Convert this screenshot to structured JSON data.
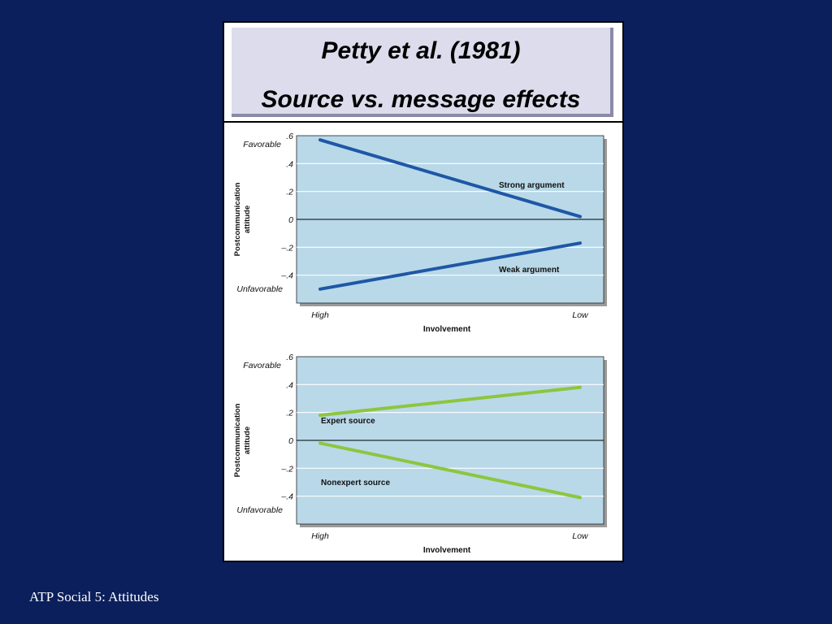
{
  "slide": {
    "title_line_1": "Petty et al. (1981)",
    "title_line_2": "Source vs. message effects",
    "footer": "ATP Social 5: Attitudes"
  },
  "colors": {
    "background": "#0b1f5c",
    "plot_fill": "#b9d9e9",
    "strong_weak_lines": "#1f57a6",
    "expert_lines": "#8cc63f"
  },
  "chart_data": [
    {
      "type": "line",
      "xlabel": "Involvement",
      "ylabel": [
        "Postcommunication",
        "attitude"
      ],
      "categories": [
        "High",
        "Low"
      ],
      "y_ticks": [
        ".6",
        ".4",
        ".2",
        "0",
        "–.2",
        "–.4"
      ],
      "y_tick_values": [
        0.6,
        0.4,
        0.2,
        0,
        -0.2,
        -0.4
      ],
      "ylim": [
        -0.6,
        0.6
      ],
      "y_end_labels": {
        "top": "Favorable",
        "bottom": "Unfavorable"
      },
      "grid": true,
      "series": [
        {
          "name": "Strong argument",
          "values": [
            0.57,
            0.02
          ],
          "color": "#1f57a6"
        },
        {
          "name": "Weak argument",
          "values": [
            -0.5,
            -0.17
          ],
          "color": "#1f57a6"
        }
      ]
    },
    {
      "type": "line",
      "xlabel": "Involvement",
      "ylabel": [
        "Postcommunication",
        "attitude"
      ],
      "categories": [
        "High",
        "Low"
      ],
      "y_ticks": [
        ".6",
        ".4",
        ".2",
        "0",
        "–.2",
        "–.4"
      ],
      "y_tick_values": [
        0.6,
        0.4,
        0.2,
        0,
        -0.2,
        -0.4
      ],
      "ylim": [
        -0.6,
        0.6
      ],
      "y_end_labels": {
        "top": "Favorable",
        "bottom": "Unfavorable"
      },
      "grid": true,
      "series": [
        {
          "name": "Expert source",
          "values": [
            0.18,
            0.38
          ],
          "color": "#8cc63f"
        },
        {
          "name": "Nonexpert source",
          "values": [
            -0.02,
            -0.41
          ],
          "color": "#8cc63f"
        }
      ]
    }
  ]
}
